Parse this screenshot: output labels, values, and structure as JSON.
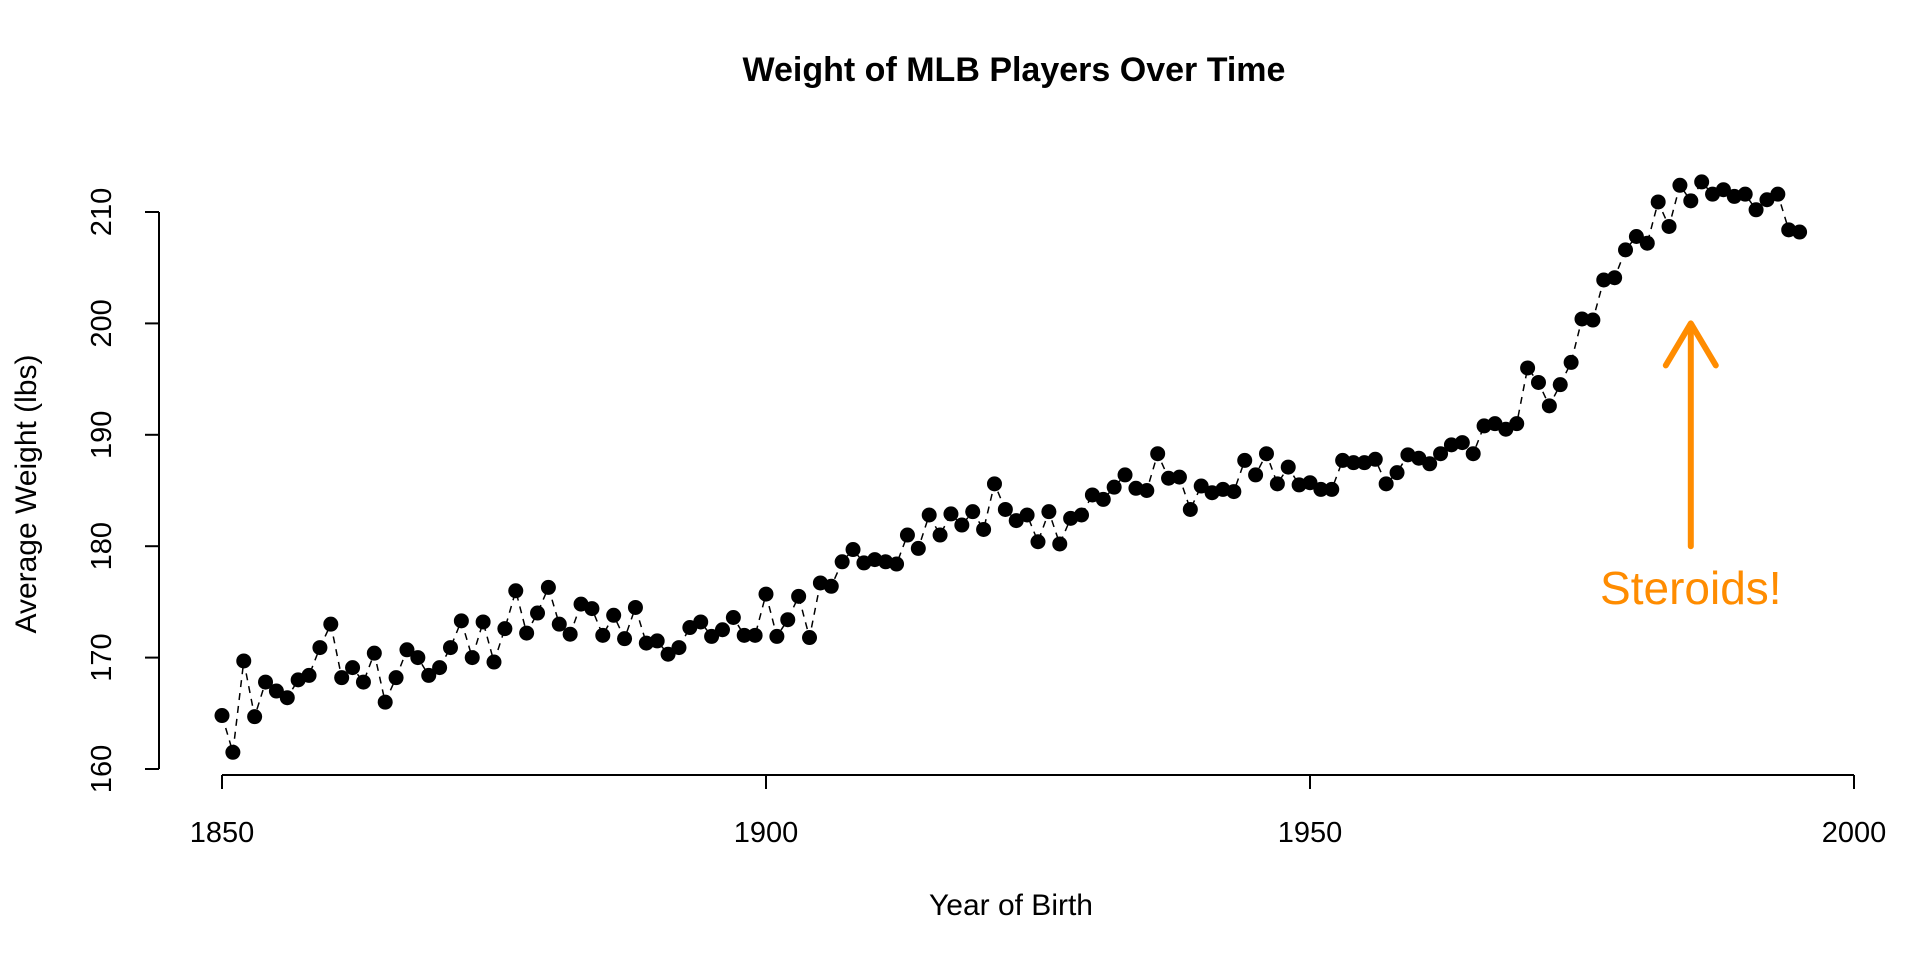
{
  "chart_data": {
    "type": "line",
    "title": "Weight of MLB Players Over Time",
    "xlabel": "Year of Birth",
    "ylabel": "Average Weight (lbs)",
    "xlim": [
      1850,
      2000
    ],
    "ylim": [
      160,
      210
    ],
    "x_ticks": [
      1850,
      1900,
      1950,
      2000
    ],
    "y_ticks": [
      160,
      170,
      180,
      190,
      200,
      210
    ],
    "grid": false,
    "series": [
      {
        "marker": "filled-circle",
        "line": "dashed",
        "color": "#000000",
        "x": [
          1850,
          1851,
          1852,
          1853,
          1854,
          1855,
          1856,
          1857,
          1858,
          1859,
          1860,
          1861,
          1862,
          1863,
          1864,
          1865,
          1866,
          1867,
          1868,
          1869,
          1870,
          1871,
          1872,
          1873,
          1874,
          1875,
          1876,
          1877,
          1878,
          1879,
          1880,
          1881,
          1882,
          1883,
          1884,
          1885,
          1886,
          1887,
          1888,
          1889,
          1890,
          1891,
          1892,
          1893,
          1894,
          1895,
          1896,
          1897,
          1898,
          1899,
          1900,
          1901,
          1902,
          1903,
          1904,
          1905,
          1906,
          1907,
          1908,
          1909,
          1910,
          1911,
          1912,
          1913,
          1914,
          1915,
          1916,
          1917,
          1918,
          1919,
          1920,
          1921,
          1922,
          1923,
          1924,
          1925,
          1926,
          1927,
          1928,
          1929,
          1930,
          1931,
          1932,
          1933,
          1934,
          1935,
          1936,
          1937,
          1938,
          1939,
          1940,
          1941,
          1942,
          1943,
          1944,
          1945,
          1946,
          1947,
          1948,
          1949,
          1950,
          1951,
          1952,
          1953,
          1954,
          1955,
          1956,
          1957,
          1958,
          1959,
          1960,
          1961,
          1962,
          1963,
          1964,
          1965,
          1966,
          1967,
          1968,
          1969,
          1970,
          1971,
          1972,
          1973,
          1974,
          1975,
          1976,
          1977,
          1978,
          1979,
          1980,
          1981,
          1982,
          1983,
          1984,
          1985,
          1986,
          1987,
          1988,
          1989,
          1990,
          1991,
          1992,
          1993,
          1994,
          1995
        ],
        "y": [
          164.8,
          161.5,
          169.7,
          164.7,
          167.8,
          167.0,
          166.4,
          168.0,
          168.4,
          170.9,
          173.0,
          168.2,
          169.1,
          167.8,
          170.4,
          166.0,
          168.2,
          170.7,
          170.0,
          168.4,
          169.1,
          170.9,
          173.3,
          170.0,
          173.2,
          169.6,
          172.6,
          176.0,
          172.2,
          174.0,
          176.3,
          173.0,
          172.1,
          174.8,
          174.4,
          172.0,
          173.8,
          171.7,
          174.5,
          171.3,
          171.5,
          170.3,
          170.9,
          172.7,
          173.2,
          171.9,
          172.5,
          173.6,
          172.0,
          172.0,
          175.7,
          171.9,
          173.4,
          175.5,
          171.8,
          176.7,
          176.4,
          178.6,
          179.7,
          178.5,
          178.8,
          178.6,
          178.4,
          181.0,
          179.8,
          182.8,
          181.0,
          182.9,
          181.9,
          183.1,
          181.5,
          185.6,
          183.3,
          182.3,
          182.8,
          180.4,
          183.1,
          180.2,
          182.5,
          182.8,
          184.6,
          184.2,
          185.3,
          186.4,
          185.2,
          185.0,
          188.3,
          186.1,
          186.2,
          183.3,
          185.4,
          184.8,
          185.1,
          184.9,
          187.7,
          186.4,
          188.3,
          185.6,
          187.1,
          185.5,
          185.7,
          185.1,
          185.1,
          187.7,
          187.5,
          187.5,
          187.8,
          185.6,
          186.6,
          188.2,
          187.9,
          187.4,
          188.3,
          189.1,
          189.3,
          188.3,
          190.8,
          191.0,
          190.5,
          191.0,
          196.0,
          194.7,
          192.6,
          194.5,
          196.5,
          200.4,
          200.3,
          203.9,
          204.1,
          206.6,
          207.8,
          207.2,
          210.9,
          208.7,
          212.4,
          211.0,
          212.7,
          211.6,
          212.0,
          211.4,
          211.6,
          210.2,
          211.1,
          211.6,
          208.4,
          208.2
        ]
      }
    ],
    "annotations": [
      {
        "text": "Steroids!",
        "color": "#FF8C00",
        "arrow_x": 1985,
        "arrow_y_from": 180,
        "arrow_y_to": 200
      }
    ]
  }
}
